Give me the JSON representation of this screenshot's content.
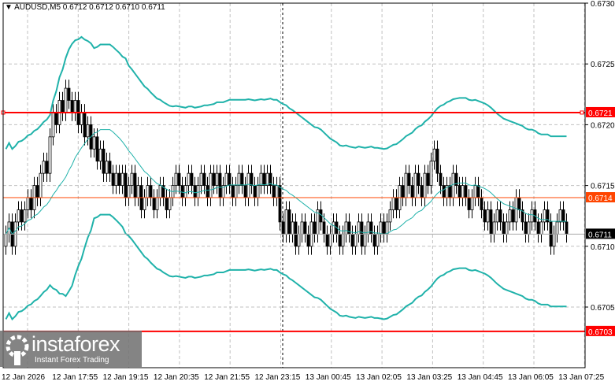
{
  "chart_data": {
    "type": "candlestick",
    "symbol_header": "AUDUSD,M5  0.6712 0.6712 0.6710 0.6711",
    "ylim": [
      0.67,
      0.673
    ],
    "y_ticks": [
      "0.6730",
      "0.6725",
      "0.6720",
      "0.6715",
      "0.6710",
      "0.6705"
    ],
    "x_ticks": [
      "12 Jan 2026",
      "12 Jan 17:55",
      "12 Jan 19:15",
      "12 Jan 20:35",
      "12 Jan 21:55",
      "12 Jan 23:15",
      "13 Jan 00:45",
      "13 Jan 02:05",
      "13 Jan 03:25",
      "13 Jan 04:45",
      "13 Jan 06:05",
      "13 Jan 07:25"
    ],
    "grid": true,
    "indicator": "Bollinger Bands",
    "closes": [
      0.6711,
      0.6712,
      0.671,
      0.6712,
      0.6713,
      0.6712,
      0.6713,
      0.6714,
      0.6713,
      0.6715,
      0.6714,
      0.6716,
      0.6717,
      0.6716,
      0.6719,
      0.6721,
      0.672,
      0.6722,
      0.6721,
      0.6723,
      0.6722,
      0.6721,
      0.6722,
      0.672,
      0.6721,
      0.6719,
      0.672,
      0.6718,
      0.6719,
      0.6717,
      0.6718,
      0.6716,
      0.6717,
      0.6716,
      0.6715,
      0.6716,
      0.6715,
      0.6716,
      0.6714,
      0.6715,
      0.6716,
      0.6714,
      0.6715,
      0.6713,
      0.6714,
      0.6715,
      0.6714,
      0.6713,
      0.6714,
      0.6715,
      0.6714,
      0.6713,
      0.6714,
      0.6715,
      0.6716,
      0.6715,
      0.6714,
      0.6715,
      0.6716,
      0.6715,
      0.6714,
      0.6715,
      0.6716,
      0.6715,
      0.6714,
      0.6716,
      0.6715,
      0.6716,
      0.6714,
      0.6715,
      0.6716,
      0.6715,
      0.6714,
      0.6715,
      0.6716,
      0.6715,
      0.6714,
      0.6716,
      0.6715,
      0.6714,
      0.6715,
      0.6716,
      0.6715,
      0.6716,
      0.6715,
      0.6714,
      0.6715,
      0.6712,
      0.6711,
      0.6713,
      0.6711,
      0.6712,
      0.671,
      0.6711,
      0.6712,
      0.6711,
      0.671,
      0.6712,
      0.6711,
      0.6713,
      0.6712,
      0.6711,
      0.671,
      0.6711,
      0.6712,
      0.6711,
      0.671,
      0.6711,
      0.6712,
      0.6711,
      0.671,
      0.6711,
      0.6712,
      0.671,
      0.6711,
      0.6712,
      0.6711,
      0.671,
      0.6711,
      0.6712,
      0.6711,
      0.6712,
      0.6713,
      0.6714,
      0.6713,
      0.6715,
      0.6714,
      0.6716,
      0.6715,
      0.6714,
      0.6716,
      0.6715,
      0.6714,
      0.6716,
      0.6715,
      0.6717,
      0.6718,
      0.6716,
      0.6715,
      0.6714,
      0.6715,
      0.6714,
      0.6716,
      0.6715,
      0.6714,
      0.6715,
      0.6714,
      0.6713,
      0.6714,
      0.6715,
      0.6714,
      0.6713,
      0.6712,
      0.6713,
      0.6711,
      0.6712,
      0.6713,
      0.6712,
      0.6711,
      0.6712,
      0.6713,
      0.6712,
      0.6714,
      0.6713,
      0.6712,
      0.6711,
      0.6712,
      0.6713,
      0.6712,
      0.6711,
      0.6712,
      0.6713,
      0.6712,
      0.671,
      0.6711,
      0.6712,
      0.6713,
      0.6712,
      0.6711
    ],
    "levels": [
      {
        "price": 0.6721,
        "label": "0.6721",
        "color": "#ff0000"
      },
      {
        "price": 0.6703,
        "label": "0.6703",
        "color": "#ff0000"
      },
      {
        "price": 0.6714,
        "label": "0.6714",
        "color": "#ff4500"
      },
      {
        "price": 0.6711,
        "label": "0.6711",
        "color": "#000000"
      }
    ],
    "band_color": "#20b2aa",
    "candle_color": "#000000"
  },
  "watermark": {
    "name": "instaforex",
    "tagline": "Instant Forex Trading"
  }
}
